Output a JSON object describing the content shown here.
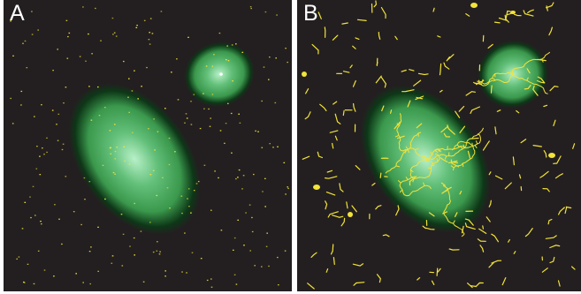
{
  "figure": {
    "panels": [
      {
        "label": "A",
        "content": "two-green-ellipses-with-sparse-yellow-dots"
      },
      {
        "label": "B",
        "content": "two-green-ellipses-with-yellow-branching-tracks"
      }
    ],
    "colors": {
      "background": "#231f20",
      "blob_core": "#b8f0c8",
      "blob_mid": "#3c9f4f",
      "blob_edge": "#0b3a16",
      "marker": "#f2e33a",
      "label": "#ffffff",
      "divider": "#ffffff"
    }
  }
}
